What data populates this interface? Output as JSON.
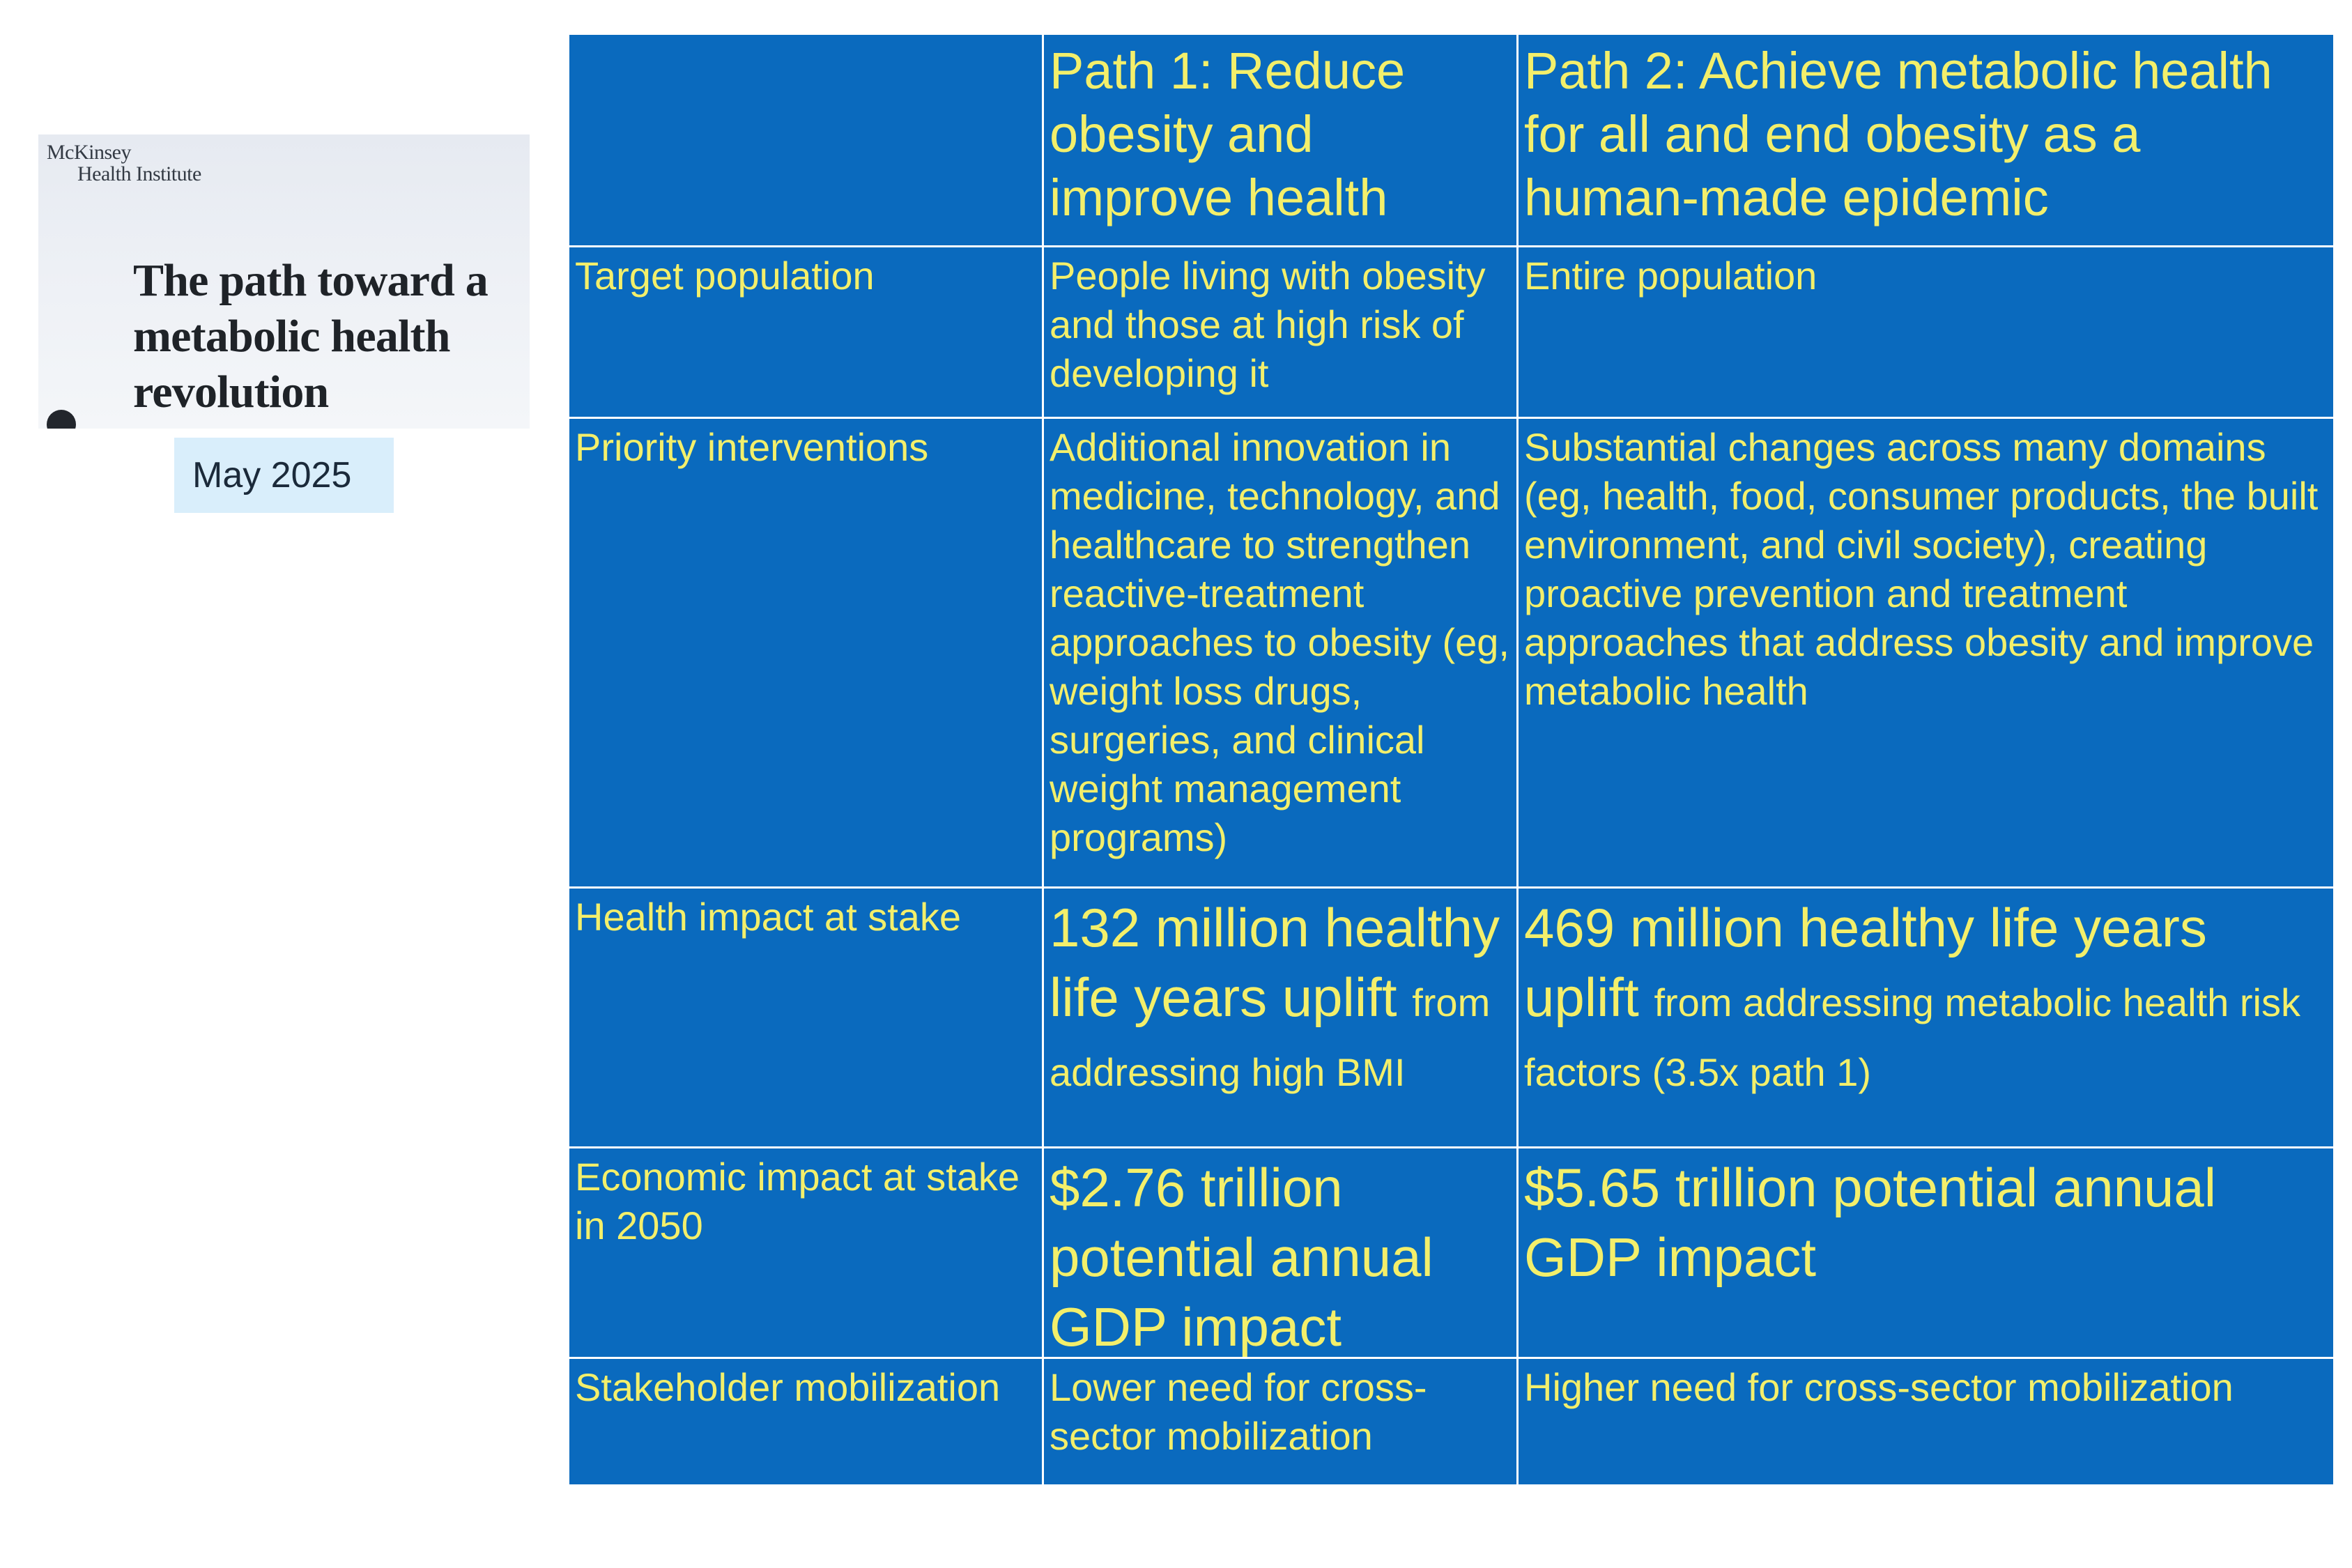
{
  "cover": {
    "publisher_line1": "McKinsey",
    "publisher_line2": "Health Institute",
    "title": "The path toward a metabolic health revolution",
    "date": "May 2025"
  },
  "table": {
    "headers": [
      "",
      "Path 1: Reduce obesity and improve health",
      "Path 2: Achieve metabolic health for all and end obesity as a human-made epidemic"
    ],
    "rows": [
      {
        "label": "Target population",
        "path1": "People living with obesity and those at high risk of developing it",
        "path2": "Entire population"
      },
      {
        "label": "Priority interventions",
        "path1": "Additional innovation in medicine, technology, and healthcare to strengthen reactive-treatment approaches to obesity (eg, weight loss drugs, surgeries, and clinical weight management programs)",
        "path2": "Substantial changes across many domains (eg, health, food, consumer products, the built environment, and civil society), creating proactive prevention and treatment approaches that address obesity and improve metabolic health"
      },
      {
        "label": "Health impact at stake",
        "path1_emphasis": "132 million healthy life years uplift",
        "path1_detail": "from addressing high BMI",
        "path2_emphasis": "469 million healthy life years uplift",
        "path2_detail": "from addressing metabolic health risk factors (3.5x path 1)"
      },
      {
        "label": "Economic impact at stake in 2050",
        "path1": "$2.76 trillion potential annual GDP impact",
        "path2": "$5.65 trillion potential annual GDP impact"
      },
      {
        "label": "Stakeholder mobilization",
        "path1": "Lower need for cross-sector mobilization",
        "path2": "Higher need for cross-sector mobilization"
      }
    ]
  },
  "colors": {
    "cell_background": "#0a6abe",
    "cell_text": "#f3ef6b",
    "grid_lines": "#ffffff",
    "date_badge": "#d9eefb"
  }
}
